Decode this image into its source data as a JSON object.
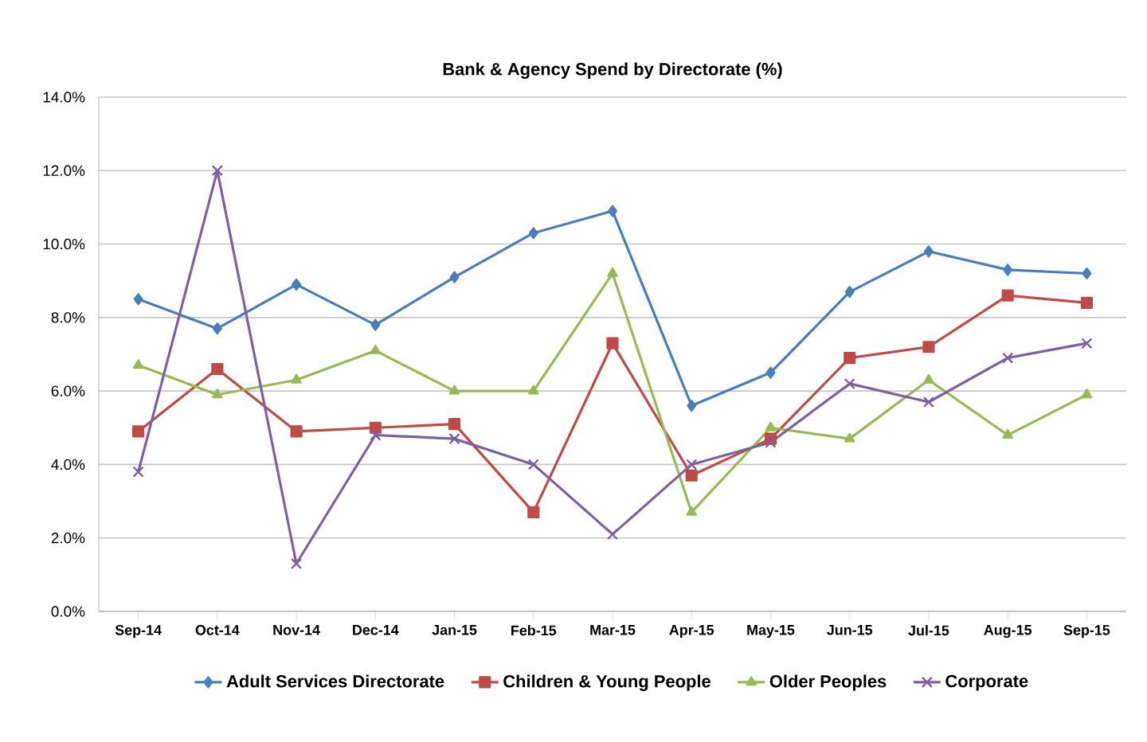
{
  "chart_data": {
    "type": "line",
    "title": "Bank & Agency Spend by Directorate (%)",
    "categories": [
      "Sep-14",
      "Oct-14",
      "Nov-14",
      "Dec-14",
      "Jan-15",
      "Feb-15",
      "Mar-15",
      "Apr-15",
      "May-15",
      "Jun-15",
      "Jul-15",
      "Aug-15",
      "Sep-15"
    ],
    "series": [
      {
        "name": "Adult Services Directorate",
        "color": "#4a7ebb",
        "marker": "diamond",
        "values": [
          8.5,
          7.7,
          8.9,
          7.8,
          9.1,
          10.3,
          10.9,
          5.6,
          6.5,
          8.7,
          9.8,
          9.3,
          9.2
        ]
      },
      {
        "name": "Children & Young People",
        "color": "#be4b48",
        "marker": "square",
        "values": [
          4.9,
          6.6,
          4.9,
          5.0,
          5.1,
          2.7,
          7.3,
          3.7,
          4.7,
          6.9,
          7.2,
          8.6,
          8.4
        ]
      },
      {
        "name": "Older Peoples",
        "color": "#98b954",
        "marker": "triangle",
        "values": [
          6.7,
          5.9,
          6.3,
          7.1,
          6.0,
          6.0,
          9.2,
          2.7,
          5.0,
          4.7,
          6.3,
          4.8,
          5.9
        ]
      },
      {
        "name": "Corporate",
        "color": "#7d60a0",
        "marker": "cross",
        "values": [
          3.8,
          12.0,
          1.3,
          4.8,
          4.7,
          4.0,
          2.1,
          4.0,
          4.6,
          6.2,
          5.7,
          6.9,
          7.3
        ]
      }
    ],
    "ylim": [
      0,
      14
    ],
    "yticks": [
      {
        "value": 0,
        "label": "0.0%"
      },
      {
        "value": 2,
        "label": "2.0%"
      },
      {
        "value": 4,
        "label": "4.0%"
      },
      {
        "value": 6,
        "label": "6.0%"
      },
      {
        "value": 8,
        "label": "8.0%"
      },
      {
        "value": 10,
        "label": "10.0%"
      },
      {
        "value": 12,
        "label": "12.0%"
      },
      {
        "value": 14,
        "label": "14.0%"
      }
    ],
    "grid": "y",
    "legend": "bottom",
    "line_style": "solid"
  }
}
